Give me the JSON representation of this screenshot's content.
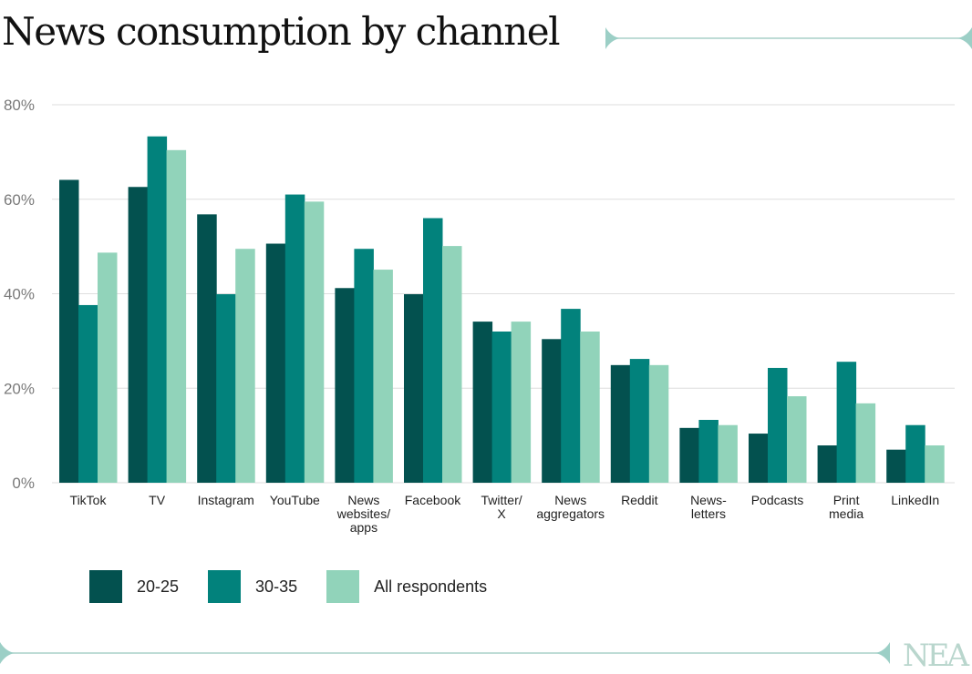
{
  "chart_data": {
    "type": "bar",
    "title": "News consumption by channel",
    "xlabel": "",
    "ylabel": "",
    "ylim": [
      0,
      80
    ],
    "yticks": [
      "0%",
      "20%",
      "40%",
      "60%",
      "80%"
    ],
    "ytick_values": [
      0,
      20,
      40,
      60,
      80
    ],
    "grid": true,
    "legend_position": "bottom-left",
    "categories": [
      [
        "TikTok"
      ],
      [
        "TV"
      ],
      [
        "Instagram"
      ],
      [
        "YouTube"
      ],
      [
        "News",
        "websites/",
        "apps"
      ],
      [
        "Facebook"
      ],
      [
        "Twitter/",
        "X"
      ],
      [
        "News",
        "aggregators"
      ],
      [
        "Reddit"
      ],
      [
        "News-",
        "letters"
      ],
      [
        "Podcasts"
      ],
      [
        "Print",
        "media"
      ],
      [
        "LinkedIn"
      ]
    ],
    "series": [
      {
        "name": "20-25",
        "color": "#03514f",
        "values": [
          64.1,
          62.6,
          56.8,
          50.6,
          41.2,
          39.9,
          34.1,
          30.4,
          24.9,
          11.6,
          10.4,
          7.9,
          7.0
        ]
      },
      {
        "name": "30-35",
        "color": "#02827c",
        "values": [
          37.6,
          73.3,
          39.9,
          61.0,
          49.5,
          56.0,
          32.0,
          36.8,
          26.2,
          13.3,
          24.3,
          25.6,
          12.2
        ]
      },
      {
        "name": "All respondents",
        "color": "#91d3ba",
        "values": [
          48.7,
          70.4,
          49.5,
          59.5,
          45.1,
          50.1,
          34.1,
          32.0,
          24.9,
          12.2,
          18.3,
          16.8,
          7.9
        ]
      }
    ]
  },
  "brand": {
    "logo": "NEA",
    "accent": "#9ccfc6"
  }
}
